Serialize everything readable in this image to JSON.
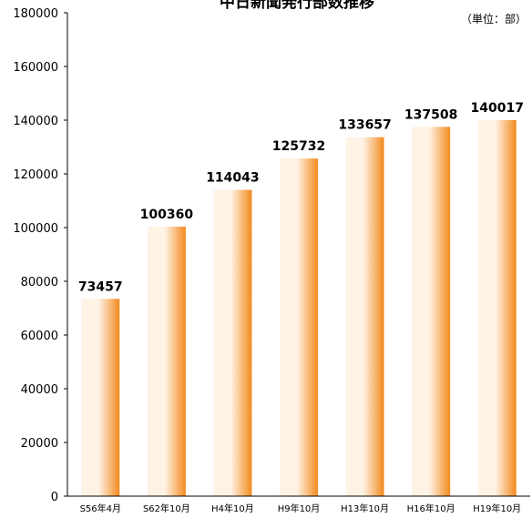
{
  "chart_data": {
    "type": "bar",
    "title": "中日新聞発行部数推移",
    "unit": "（単位：部）",
    "categories": [
      "S56年4月",
      "S62年10月",
      "H4年10月",
      "H9年10月",
      "H13年10月",
      "H16年10月",
      "H19年10月"
    ],
    "values": [
      73457,
      100360,
      114043,
      125732,
      133657,
      137508,
      140017
    ],
    "data_labels": [
      "73457",
      "100360",
      "114043",
      "125732",
      "133657",
      "137508",
      "140017"
    ],
    "y_ticks": [
      "0",
      "20000",
      "40000",
      "60000",
      "80000",
      "100000",
      "120000",
      "140000",
      "160000",
      "180000"
    ],
    "ylim": [
      0,
      180000
    ],
    "grid": false,
    "legend": "none",
    "bar_color_light": "#fff3e6",
    "bar_color_dark": "#f28a1e"
  }
}
